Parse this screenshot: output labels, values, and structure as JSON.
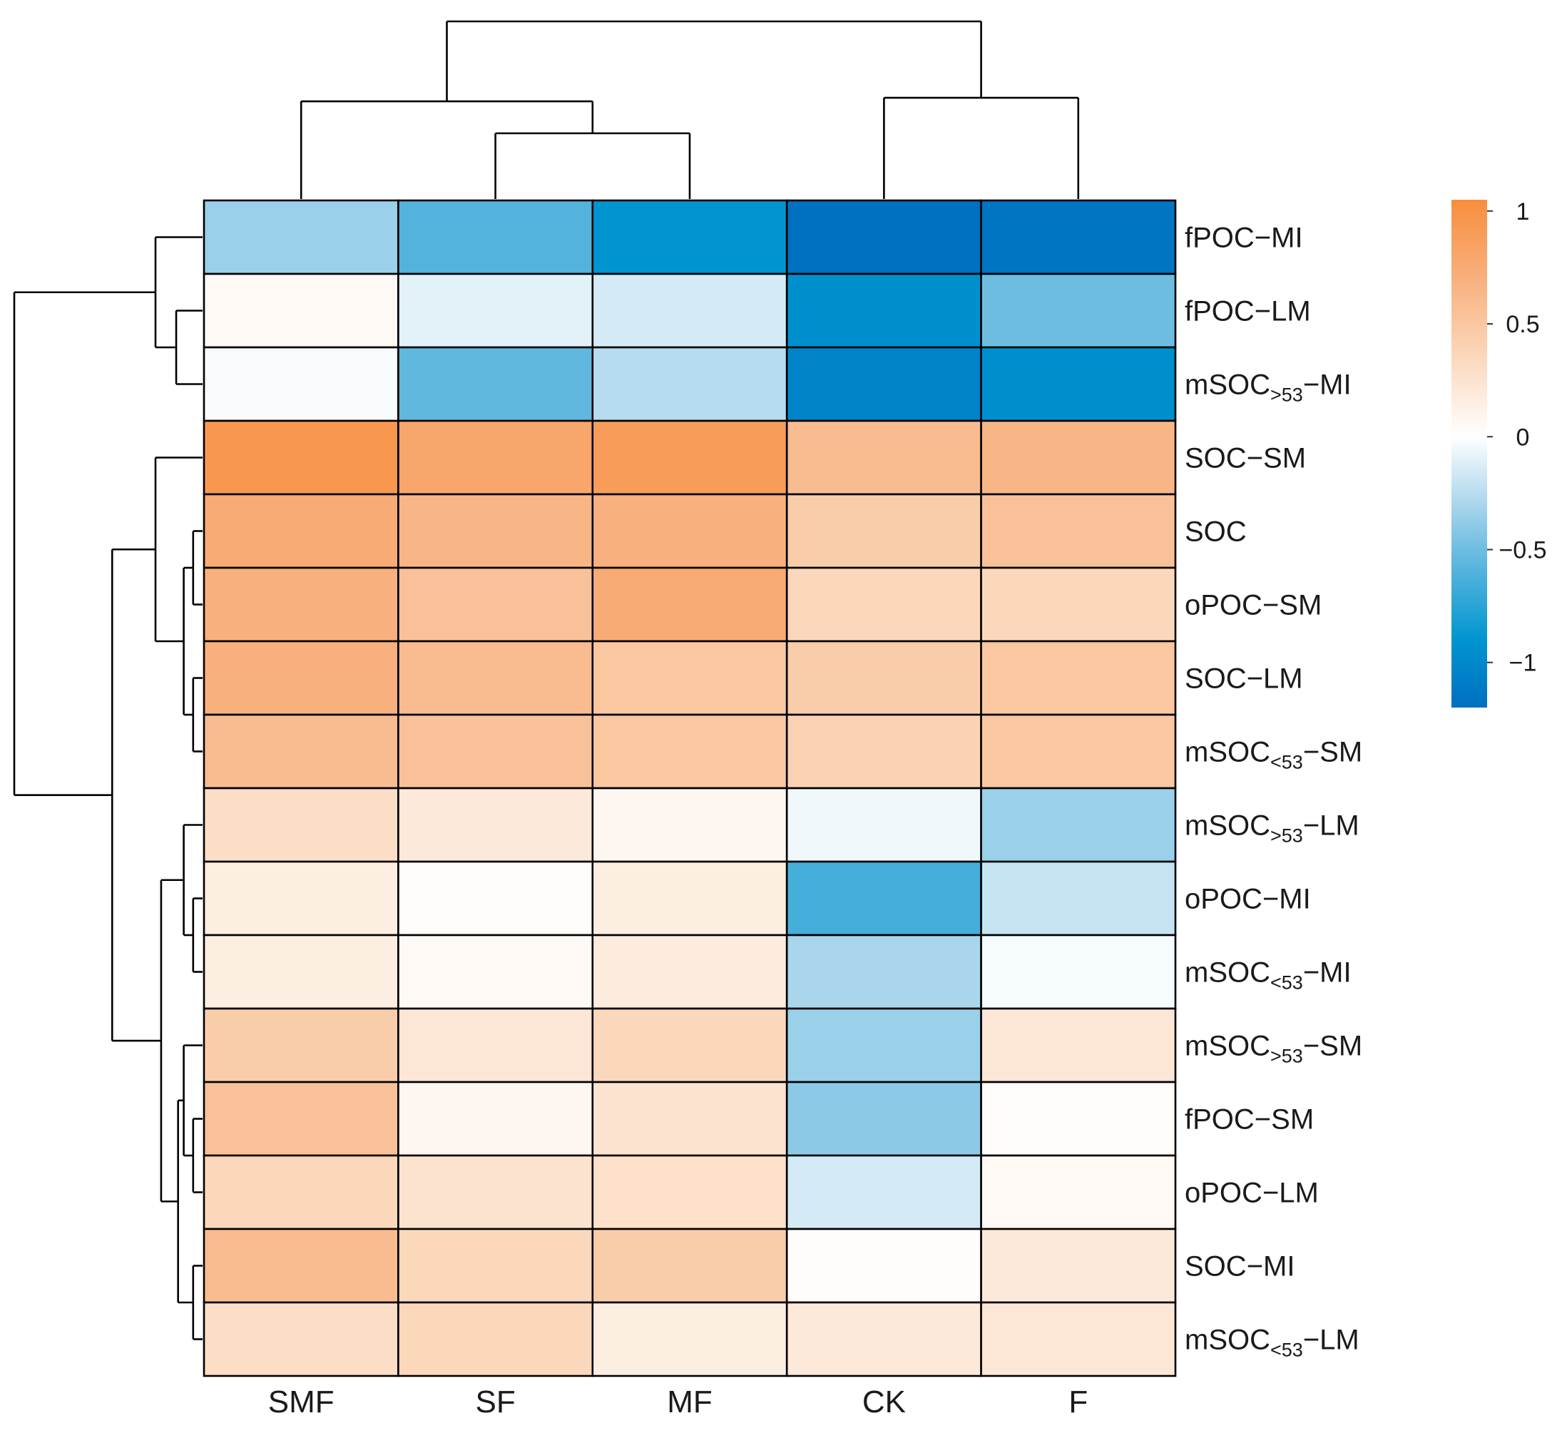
{
  "chart_data": {
    "type": "heatmap",
    "title": "",
    "columns": [
      "SMF",
      "SF",
      "MF",
      "CK",
      "F"
    ],
    "rows": [
      {
        "id": "fPOC-MI",
        "base": "fPOC",
        "sub": "",
        "suffix": "−MI"
      },
      {
        "id": "fPOC-LM",
        "base": "fPOC",
        "sub": "",
        "suffix": "−LM"
      },
      {
        "id": "mSOC>53-MI",
        "base": "mSOC",
        "sub": ">53",
        "suffix": "−MI"
      },
      {
        "id": "SOC-SM",
        "base": "SOC",
        "sub": "",
        "suffix": "−SM"
      },
      {
        "id": "SOC",
        "base": "SOC",
        "sub": "",
        "suffix": ""
      },
      {
        "id": "oPOC-SM",
        "base": "oPOC",
        "sub": "",
        "suffix": "−SM"
      },
      {
        "id": "SOC-LM",
        "base": "SOC",
        "sub": "",
        "suffix": "−LM"
      },
      {
        "id": "mSOC<53-SM",
        "base": "mSOC",
        "sub": "<53",
        "suffix": "−SM"
      },
      {
        "id": "mSOC>53-LM",
        "base": "mSOC",
        "sub": ">53",
        "suffix": "−LM"
      },
      {
        "id": "oPOC-MI",
        "base": "oPOC",
        "sub": "",
        "suffix": "−MI"
      },
      {
        "id": "mSOC<53-MI",
        "base": "mSOC",
        "sub": "<53",
        "suffix": "−MI"
      },
      {
        "id": "mSOC>53-SM",
        "base": "mSOC",
        "sub": ">53",
        "suffix": "−SM"
      },
      {
        "id": "fPOC-SM",
        "base": "fPOC",
        "sub": "",
        "suffix": "−SM"
      },
      {
        "id": "oPOC-LM",
        "base": "oPOC",
        "sub": "",
        "suffix": "−LM"
      },
      {
        "id": "SOC-MI",
        "base": "SOC",
        "sub": "",
        "suffix": "−MI"
      },
      {
        "id": "mSOC<53-LM",
        "base": "mSOC",
        "sub": "<53",
        "suffix": "−LM"
      }
    ],
    "values": [
      [
        -0.35,
        -0.6,
        -0.9,
        -1.2,
        -1.15
      ],
      [
        0.05,
        -0.1,
        -0.15,
        -0.95,
        -0.5
      ],
      [
        -0.02,
        -0.55,
        -0.25,
        -1.05,
        -0.95
      ],
      [
        0.95,
        0.8,
        0.9,
        0.6,
        0.65
      ],
      [
        0.75,
        0.65,
        0.7,
        0.45,
        0.55
      ],
      [
        0.7,
        0.55,
        0.75,
        0.35,
        0.35
      ],
      [
        0.7,
        0.6,
        0.5,
        0.45,
        0.5
      ],
      [
        0.6,
        0.55,
        0.5,
        0.4,
        0.5
      ],
      [
        0.3,
        0.2,
        0.08,
        -0.05,
        -0.35
      ],
      [
        0.15,
        0.03,
        0.15,
        -0.65,
        -0.2
      ],
      [
        0.15,
        0.05,
        0.18,
        -0.3,
        -0.03
      ],
      [
        0.45,
        0.22,
        0.35,
        -0.35,
        0.22
      ],
      [
        0.55,
        0.08,
        0.25,
        -0.4,
        0.03
      ],
      [
        0.35,
        0.25,
        0.28,
        -0.15,
        0.05
      ],
      [
        0.6,
        0.35,
        0.45,
        0.02,
        0.2
      ],
      [
        0.3,
        0.35,
        0.15,
        0.2,
        0.22
      ]
    ],
    "color_scale": {
      "min": -1.2,
      "max": 1.05,
      "stops": [
        {
          "v": -1.2,
          "color": "#0070c0"
        },
        {
          "v": -0.9,
          "color": "#0095d0"
        },
        {
          "v": -0.5,
          "color": "#6ebde0"
        },
        {
          "v": -0.25,
          "color": "#b8dcef"
        },
        {
          "v": 0,
          "color": "#ffffff"
        },
        {
          "v": 0.35,
          "color": "#fbd8bc"
        },
        {
          "v": 0.7,
          "color": "#f8b07e"
        },
        {
          "v": 1.05,
          "color": "#f88e3d"
        }
      ],
      "ticks": [
        {
          "value": 1,
          "label": "1"
        },
        {
          "value": 0.5,
          "label": "0.5"
        },
        {
          "value": 0,
          "label": "0"
        },
        {
          "value": -0.5,
          "label": "−0.5"
        },
        {
          "value": -1,
          "label": "−1"
        }
      ]
    },
    "column_dendrogram": {
      "merges": [
        [
          1,
          2
        ],
        [
          0,
          5
        ],
        [
          3,
          4
        ],
        [
          6,
          7
        ]
      ],
      "heights": [
        0.37,
        0.55,
        0.57,
        1.0
      ]
    },
    "row_dendrogram": {
      "merges": [
        [
          1,
          2
        ],
        [
          0,
          16
        ],
        [
          4,
          5
        ],
        [
          6,
          7
        ],
        [
          18,
          19
        ],
        [
          3,
          20
        ],
        [
          9,
          10
        ],
        [
          8,
          22
        ],
        [
          12,
          13
        ],
        [
          11,
          24
        ],
        [
          14,
          15
        ],
        [
          25,
          26
        ],
        [
          23,
          27
        ],
        [
          21,
          28
        ],
        [
          17,
          29
        ]
      ],
      "heights": [
        0.14,
        0.25,
        0.05,
        0.05,
        0.1,
        0.25,
        0.05,
        0.1,
        0.05,
        0.1,
        0.05,
        0.13,
        0.22,
        0.48,
        1.0
      ]
    }
  }
}
